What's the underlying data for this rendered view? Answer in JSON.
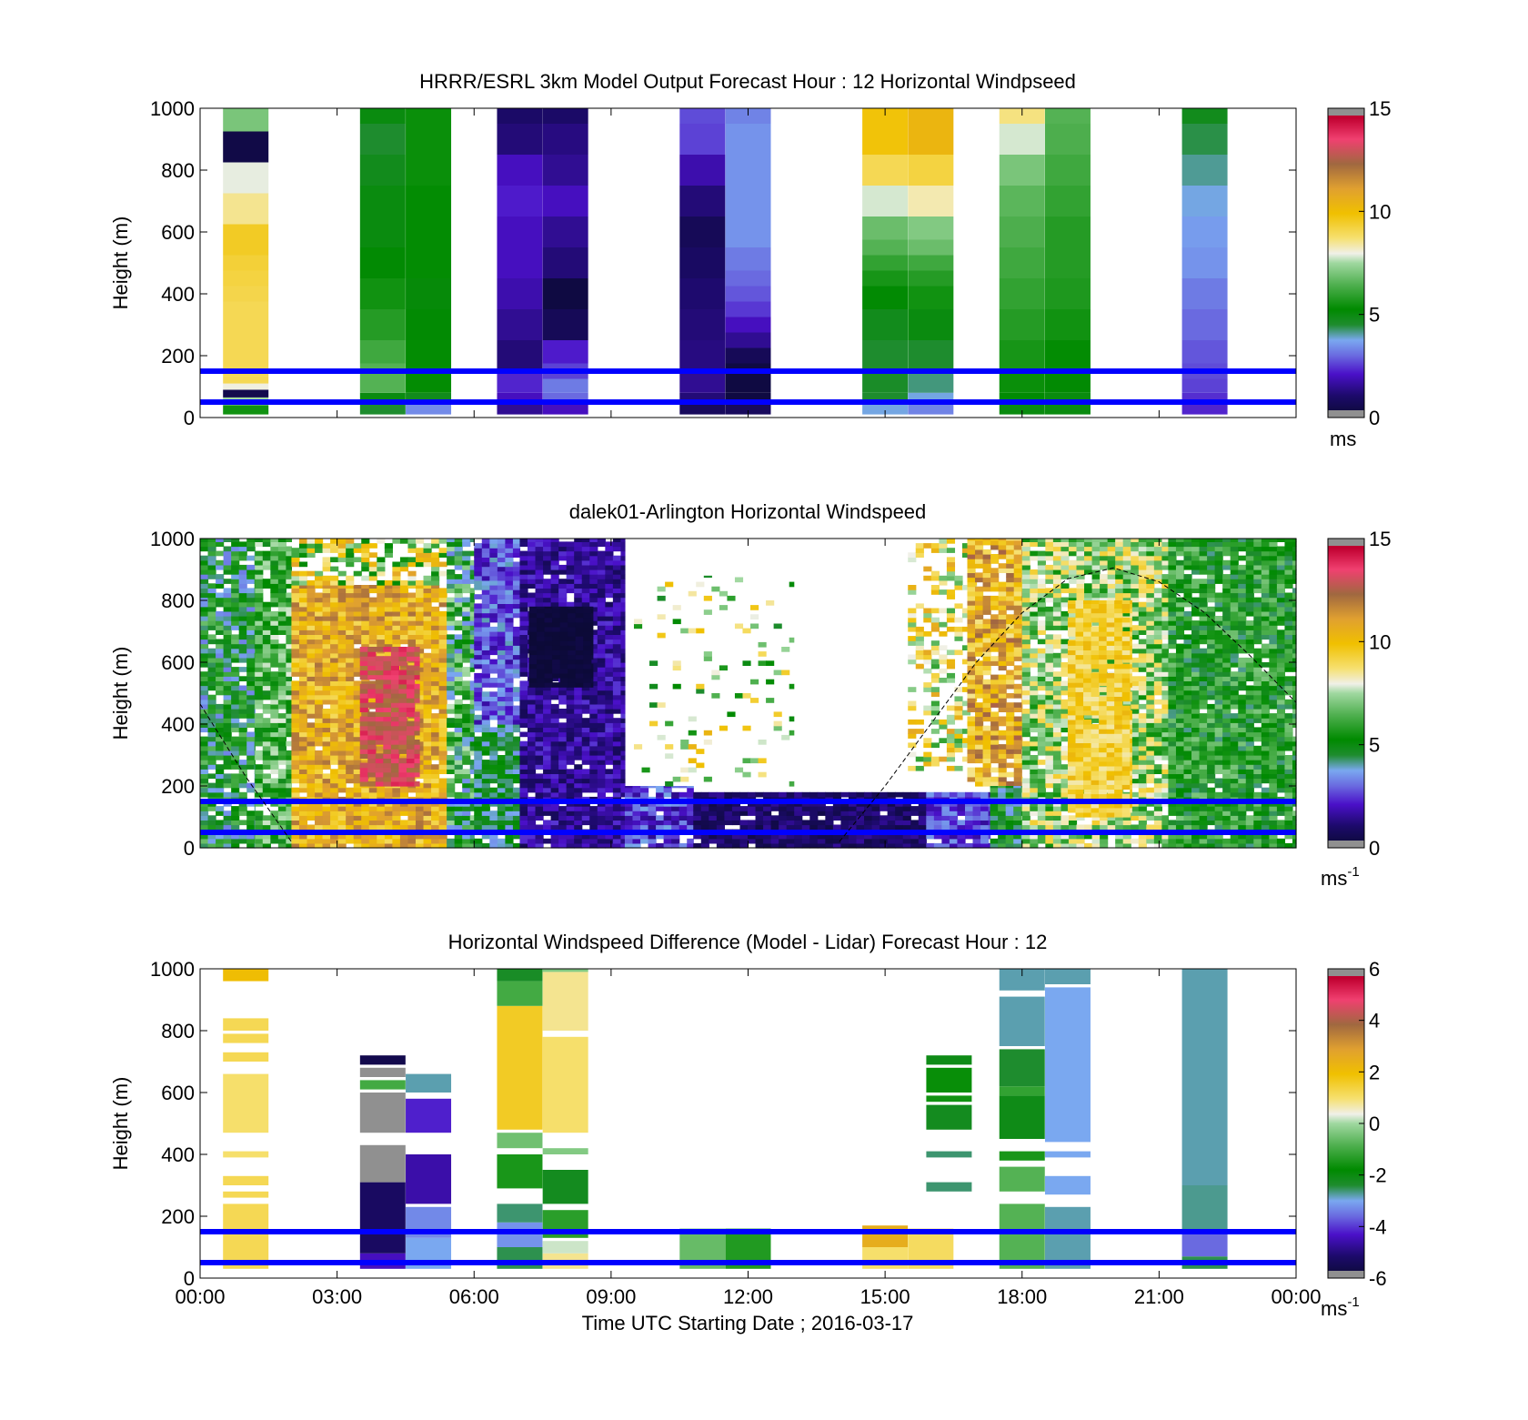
{
  "figure": {
    "xlabel": "Time UTC  Starting Date ; 2016-03-17",
    "xticks": [
      "00:00",
      "03:00",
      "06:00",
      "09:00",
      "12:00",
      "15:00",
      "18:00",
      "21:00",
      "00:00"
    ],
    "line_color": "#0000ff"
  },
  "chart_data": [
    {
      "type": "heatmap",
      "title": "HRRR/ESRL 3km Model Output   Forecast Hour : 12 Horizontal Windpseed",
      "ylabel": "Height (m)",
      "xlim_hours": [
        0,
        24
      ],
      "ylim": [
        0,
        1000
      ],
      "yticks": [
        "0",
        "200",
        "400",
        "600",
        "800",
        "1000"
      ],
      "colorbar": {
        "range": [
          0,
          15
        ],
        "ticks": [
          "0",
          "5",
          "10",
          "15"
        ],
        "unit": "ms",
        "unit_sup": ""
      },
      "reference_lines_m": [
        50,
        150
      ],
      "columns": [
        {
          "t": 1.0,
          "h": [
            30,
            50,
            80,
            100,
            120,
            150,
            200,
            250,
            300,
            350,
            400,
            450,
            500,
            550,
            600,
            650,
            700,
            750,
            800,
            850,
            900,
            950,
            1000
          ],
          "v": [
            5.5,
            7.5,
            0.5,
            8,
            9,
            9,
            9,
            9,
            9,
            9,
            9.1,
            9.2,
            9.3,
            9.5,
            9.5,
            8.5,
            8.5,
            7.9,
            7.9,
            0.4,
            0.4,
            7.0,
            7.0
          ]
        },
        {
          "t": 4.0,
          "h": [
            30,
            60,
            100,
            150,
            200,
            300,
            400,
            500,
            600,
            700,
            800,
            900,
            1000
          ],
          "v": [
            4.5,
            5.0,
            6.5,
            6.5,
            6.2,
            5.8,
            5.5,
            5.2,
            5.0,
            5.0,
            4.8,
            4.5,
            5.0
          ]
        },
        {
          "t": 5.0,
          "h": [
            30,
            60,
            100,
            200,
            300,
            400,
            500,
            600,
            700,
            800,
            900,
            1000
          ],
          "v": [
            3.4,
            4.8,
            5.3,
            5.3,
            5.2,
            5.1,
            5.3,
            5.3,
            5.3,
            5.4,
            5.4,
            5.4
          ]
        },
        {
          "t": 7.0,
          "h": [
            30,
            60,
            100,
            200,
            300,
            400,
            500,
            600,
            700,
            800,
            900,
            1000
          ],
          "v": [
            1.5,
            2.0,
            2.3,
            1.2,
            1.5,
            1.8,
            2.0,
            2.0,
            2.2,
            2.0,
            1.2,
            1.0
          ]
        },
        {
          "t": 8.0,
          "h": [
            30,
            60,
            100,
            150,
            200,
            300,
            400,
            500,
            600,
            700,
            800,
            900,
            1000
          ],
          "v": [
            2.0,
            3.0,
            3.2,
            2.6,
            2.2,
            0.7,
            0.3,
            1.2,
            1.5,
            2.0,
            1.5,
            1.3,
            1.0
          ]
        },
        {
          "t": 11.0,
          "h": [
            30,
            60,
            100,
            200,
            300,
            400,
            500,
            600,
            700,
            800,
            900,
            1000
          ],
          "v": [
            0.8,
            1.2,
            1.5,
            1.3,
            1.2,
            1.1,
            0.9,
            0.7,
            1.2,
            1.8,
            2.6,
            2.7
          ]
        },
        {
          "t": 12.0,
          "h": [
            30,
            60,
            100,
            150,
            200,
            250,
            300,
            350,
            400,
            450,
            500,
            600,
            700,
            800,
            900,
            1000
          ],
          "v": [
            0.8,
            0.3,
            0.3,
            0.3,
            0.7,
            1.5,
            2.0,
            2.5,
            2.8,
            3.0,
            3.2,
            3.5,
            3.5,
            3.5,
            3.5,
            3.3
          ]
        },
        {
          "t": 15.0,
          "h": [
            30,
            60,
            100,
            200,
            300,
            400,
            450,
            500,
            550,
            600,
            700,
            800,
            900,
            1000
          ],
          "v": [
            3.8,
            4.5,
            4.6,
            4.5,
            4.8,
            5.2,
            5.6,
            6.0,
            6.5,
            6.8,
            7.8,
            9.0,
            9.8,
            9.8
          ]
        },
        {
          "t": 16.0,
          "h": [
            30,
            60,
            100,
            200,
            300,
            400,
            450,
            500,
            550,
            600,
            700,
            800,
            900,
            1000
          ],
          "v": [
            3.3,
            3.8,
            4.2,
            4.5,
            5.0,
            5.5,
            5.8,
            6.2,
            6.8,
            7.1,
            8.3,
            9.2,
            10.3,
            10.3
          ]
        },
        {
          "t": 18.0,
          "h": [
            30,
            60,
            100,
            200,
            300,
            400,
            500,
            600,
            700,
            800,
            900,
            1000
          ],
          "v": [
            5.0,
            5.2,
            5.4,
            5.6,
            5.8,
            6.0,
            6.2,
            6.4,
            6.6,
            7.0,
            7.8,
            8.6
          ]
        },
        {
          "t": 19.0,
          "h": [
            30,
            60,
            100,
            200,
            300,
            400,
            500,
            600,
            700,
            800,
            900,
            1000
          ],
          "v": [
            5.0,
            5.0,
            5.2,
            5.3,
            5.5,
            5.7,
            5.8,
            5.8,
            6.0,
            6.2,
            6.4,
            6.5
          ]
        },
        {
          "t": 22.0,
          "h": [
            30,
            60,
            100,
            150,
            200,
            300,
            400,
            500,
            600,
            700,
            800,
            900,
            1000
          ],
          "v": [
            2.3,
            2.4,
            2.6,
            2.7,
            2.8,
            3.0,
            3.2,
            3.5,
            3.6,
            3.8,
            4.1,
            4.4,
            4.8
          ]
        }
      ]
    },
    {
      "type": "heatmap",
      "title": "dalek01-Arlington  Horizontal Windspeed",
      "ylabel": "Height (m)",
      "xlim_hours": [
        0,
        24
      ],
      "ylim": [
        0,
        1000
      ],
      "yticks": [
        "0",
        "200",
        "400",
        "600",
        "800",
        "1000"
      ],
      "colorbar": {
        "range": [
          0,
          15
        ],
        "ticks": [
          "0",
          "5",
          "10",
          "15"
        ],
        "unit": "ms",
        "unit_sup": "-1"
      },
      "reference_lines_m": [
        50,
        150
      ],
      "dashed_curve": {
        "t": [
          0,
          1,
          2,
          3,
          4,
          5,
          6,
          7,
          8,
          9,
          10,
          11,
          12,
          13,
          14,
          15,
          16,
          17,
          18,
          19,
          20,
          21,
          22,
          23,
          24
        ],
        "h": [
          465,
          230,
          20,
          null,
          null,
          null,
          null,
          null,
          null,
          null,
          null,
          null,
          null,
          null,
          20,
          200,
          400,
          600,
          760,
          870,
          905,
          860,
          760,
          620,
          470
        ]
      },
      "segments": [
        {
          "t0": 0.0,
          "t1": 1.2,
          "h0": 0,
          "h1": 1000,
          "mean": 5.0,
          "noise": 1.8,
          "gap": 0.12
        },
        {
          "t0": 1.2,
          "t1": 2.0,
          "h0": 0,
          "h1": 1000,
          "mean": 6.3,
          "noise": 1.6,
          "gap": 0.1
        },
        {
          "t0": 2.0,
          "t1": 5.4,
          "h0": 0,
          "h1": 850,
          "mean": 10.5,
          "noise": 1.6,
          "gap": 0.04
        },
        {
          "t0": 2.0,
          "t1": 5.4,
          "h0": 850,
          "h1": 1000,
          "mean": 8.0,
          "noise": 3.0,
          "gap": 0.35
        },
        {
          "t0": 3.5,
          "t1": 4.8,
          "h0": 200,
          "h1": 650,
          "mean": 13.0,
          "noise": 1.0,
          "gap": 0.05
        },
        {
          "t0": 5.4,
          "t1": 6.0,
          "h0": 0,
          "h1": 1000,
          "mean": 5.5,
          "noise": 2.2,
          "gap": 0.15
        },
        {
          "t0": 6.0,
          "t1": 7.0,
          "h0": 0,
          "h1": 400,
          "mean": 4.5,
          "noise": 1.0,
          "gap": 0.05
        },
        {
          "t0": 6.0,
          "t1": 7.0,
          "h0": 400,
          "h1": 1000,
          "mean": 2.8,
          "noise": 1.2,
          "gap": 0.08
        },
        {
          "t0": 7.0,
          "t1": 9.3,
          "h0": 0,
          "h1": 1000,
          "mean": 1.6,
          "noise": 0.9,
          "gap": 0.05
        },
        {
          "t0": 7.2,
          "t1": 8.6,
          "h0": 520,
          "h1": 780,
          "mean": 0.2,
          "noise": 0.2,
          "gap": 0.03
        },
        {
          "t0": 9.3,
          "t1": 10.8,
          "h0": 0,
          "h1": 200,
          "mean": 2.6,
          "noise": 1.2,
          "gap": 0.1
        },
        {
          "t0": 10.8,
          "t1": 15.9,
          "h0": 0,
          "h1": 180,
          "mean": 1.0,
          "noise": 0.6,
          "gap": 0.05
        },
        {
          "t0": 9.5,
          "t1": 13.0,
          "h0": 200,
          "h1": 880,
          "mean": 7.5,
          "noise": 3.0,
          "gap": 0.88
        },
        {
          "t0": 15.5,
          "t1": 17.0,
          "h0": 250,
          "h1": 1000,
          "mean": 8.5,
          "noise": 2.5,
          "gap": 0.55
        },
        {
          "t0": 15.9,
          "t1": 17.3,
          "h0": 0,
          "h1": 180,
          "mean": 2.6,
          "noise": 1.0,
          "gap": 0.05
        },
        {
          "t0": 16.8,
          "t1": 18.0,
          "h0": 200,
          "h1": 1000,
          "mean": 10.5,
          "noise": 2.0,
          "gap": 0.1
        },
        {
          "t0": 17.3,
          "t1": 18.0,
          "h0": 0,
          "h1": 200,
          "mean": 5.0,
          "noise": 1.5,
          "gap": 0.08
        },
        {
          "t0": 18.0,
          "t1": 21.2,
          "h0": 0,
          "h1": 1000,
          "mean": 7.4,
          "noise": 2.0,
          "gap": 0.08
        },
        {
          "t0": 19.0,
          "t1": 20.4,
          "h0": 100,
          "h1": 800,
          "mean": 9.3,
          "noise": 1.0,
          "gap": 0.06
        },
        {
          "t0": 21.2,
          "t1": 24.0,
          "h0": 0,
          "h1": 1000,
          "mean": 5.6,
          "noise": 1.5,
          "gap": 0.05
        }
      ]
    },
    {
      "type": "heatmap",
      "title": "Horizontal Windspeed Difference (Model - Lidar) Forecast Hour : 12",
      "ylabel": "Height (m)",
      "xlim_hours": [
        0,
        24
      ],
      "ylim": [
        0,
        1000
      ],
      "yticks": [
        "0",
        "200",
        "400",
        "600",
        "800",
        "1000"
      ],
      "colorbar": {
        "range": [
          -6,
          6
        ],
        "ticks": [
          "-6",
          "-4",
          "-2",
          "0",
          "2",
          "4",
          "6"
        ],
        "unit": "ms",
        "unit_sup": "-1"
      },
      "reference_lines_m": [
        50,
        150
      ],
      "columns": [
        {
          "t": 1.0,
          "runs": [
            [
              30,
              240,
              1.2
            ],
            [
              260,
              280,
              1.2
            ],
            [
              300,
              330,
              1.2
            ],
            [
              390,
              410,
              1.0
            ],
            [
              470,
              660,
              1.0
            ],
            [
              700,
              730,
              1.2
            ],
            [
              760,
              790,
              1.2
            ],
            [
              800,
              840,
              1.2
            ],
            [
              960,
              1000,
              2.0
            ]
          ]
        },
        {
          "t": 4.0,
          "runs": [
            [
              30,
              80,
              -4.4
            ],
            [
              80,
              310,
              -5.3
            ],
            [
              310,
              430,
              -6.0
            ],
            [
              470,
              600,
              -6.0
            ],
            [
              610,
              640,
              -1.0
            ],
            [
              650,
              680,
              -6.0
            ],
            [
              690,
              720,
              -5.6
            ]
          ]
        },
        {
          "t": 5.0,
          "runs": [
            [
              30,
              130,
              -3.0
            ],
            [
              130,
              230,
              -3.3
            ],
            [
              240,
              400,
              -4.6
            ],
            [
              470,
              580,
              -4.2
            ],
            [
              600,
              660,
              -2.8
            ]
          ]
        },
        {
          "t": 7.0,
          "runs": [
            [
              30,
              100,
              -2.5
            ],
            [
              100,
              180,
              -3.2
            ],
            [
              180,
              240,
              -2.6
            ],
            [
              290,
              400,
              -1.5
            ],
            [
              420,
              470,
              -0.5
            ],
            [
              480,
              880,
              1.6
            ],
            [
              880,
              960,
              -1.0
            ],
            [
              960,
              1000,
              -2.3
            ]
          ]
        },
        {
          "t": 8.0,
          "runs": [
            [
              30,
              80,
              0.8
            ],
            [
              80,
              120,
              0.2
            ],
            [
              130,
              220,
              -1.3
            ],
            [
              240,
              350,
              -2.2
            ],
            [
              400,
              420,
              -0.3
            ],
            [
              470,
              780,
              1.0
            ],
            [
              800,
              990,
              0.8
            ],
            [
              990,
              1000,
              -0.3
            ]
          ]
        },
        {
          "t": 11.0,
          "runs": [
            [
              30,
              160,
              -0.6
            ]
          ]
        },
        {
          "t": 12.0,
          "runs": [
            [
              30,
              160,
              -1.4
            ]
          ]
        },
        {
          "t": 15.0,
          "runs": [
            [
              30,
              100,
              1.0
            ],
            [
              100,
              170,
              2.5
            ]
          ]
        },
        {
          "t": 16.0,
          "runs": [
            [
              30,
              160,
              1.1
            ]
          ]
        },
        {
          "t": 16.4,
          "runs": [
            [
              280,
              310,
              -2.6
            ],
            [
              390,
              410,
              -2.6
            ],
            [
              480,
              560,
              -2.2
            ],
            [
              570,
              590,
              -1.6
            ],
            [
              600,
              680,
              -1.7
            ],
            [
              690,
              720,
              -2.1
            ]
          ]
        },
        {
          "t": 18.0,
          "runs": [
            [
              30,
              240,
              -0.8
            ],
            [
              280,
              360,
              -0.8
            ],
            [
              380,
              410,
              -1.5
            ],
            [
              450,
              590,
              -2.1
            ],
            [
              590,
              620,
              -1.2
            ],
            [
              620,
              740,
              -2.4
            ],
            [
              750,
              910,
              -2.8
            ],
            [
              930,
              1000,
              -2.8
            ]
          ]
        },
        {
          "t": 19.0,
          "runs": [
            [
              30,
              230,
              -2.8
            ],
            [
              270,
              330,
              -3.0
            ],
            [
              390,
              410,
              -3.0
            ],
            [
              440,
              940,
              -3.0
            ],
            [
              950,
              1000,
              -2.8
            ]
          ]
        },
        {
          "t": 22.0,
          "runs": [
            [
              30,
              70,
              -2.5
            ],
            [
              70,
              150,
              -3.6
            ],
            [
              150,
              300,
              -2.7
            ],
            [
              300,
              1000,
              -2.8
            ]
          ]
        }
      ]
    }
  ]
}
